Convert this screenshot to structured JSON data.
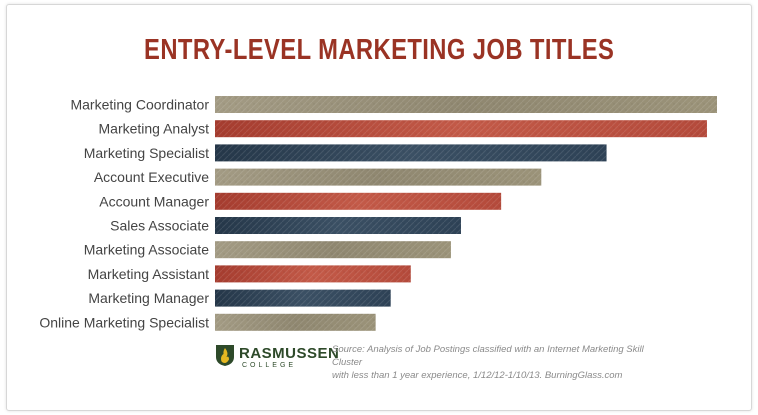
{
  "colors": {
    "title": "#9a3324",
    "tan": "#8f8770",
    "red": "#b5483a",
    "navy": "#2e4256",
    "label": "#444444",
    "brand": "#2e4a2a",
    "logo_gold": "#e6b821"
  },
  "chart_data": {
    "type": "bar",
    "orientation": "horizontal",
    "title": "ENTRY-LEVEL MARKETING JOB TITLES",
    "categories": [
      "Marketing Coordinator",
      "Marketing Analyst",
      "Marketing Specialist",
      "Account Executive",
      "Account Manager",
      "Sales Associate",
      "Marketing Associate",
      "Marketing Assistant",
      "Marketing Manager",
      "Online Marketing Specialist"
    ],
    "values": [
      100,
      98,
      78,
      65,
      57,
      49,
      47,
      39,
      35,
      32
    ],
    "bar_colors": [
      "tan",
      "red",
      "navy",
      "tan",
      "red",
      "navy",
      "tan",
      "red",
      "navy",
      "tan"
    ],
    "xlim": [
      0,
      100
    ],
    "grid": false,
    "legend": "none",
    "value_labels_shown": false
  },
  "footer": {
    "brand_name": "RASMUSSEN",
    "brand_sub": "COLLEGE",
    "source_line1": "Source: Analysis of Job Postings classified with an Internet Marketing Skill Cluster",
    "source_line2": "with less than 1 year experience, 1/12/12-1/10/13. BurningGlass.com"
  },
  "icons": {
    "logo": "rasmussen-flame-logo-icon"
  }
}
